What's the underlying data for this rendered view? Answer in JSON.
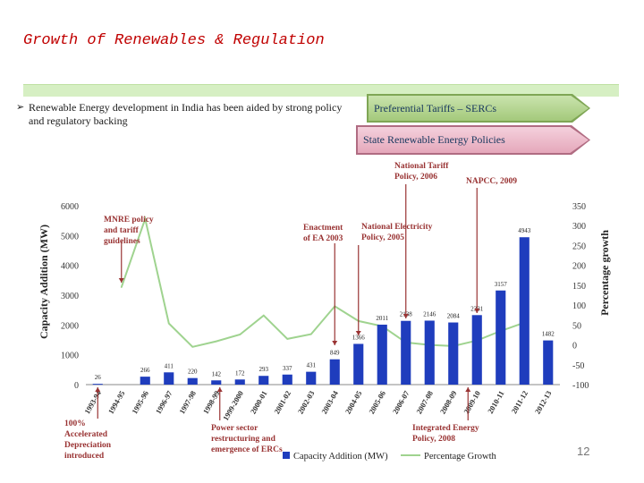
{
  "title": "Growth of Renewables & Regulation",
  "bullet": "Renewable Energy development in India has been aided by strong policy and regulatory backing",
  "arrows": [
    "Preferential Tariffs – SERCs",
    "State Renewable Energy Policies"
  ],
  "page_number": "12",
  "colors": {
    "title": "#c00000",
    "bars": "#1f3dbd",
    "growth_line": "#9fd38f",
    "annotation": "#993333"
  },
  "chart_data": {
    "type": "bar",
    "categories": [
      "1993-94",
      "1994-95",
      "1995-96",
      "1996-97",
      "1997-98",
      "1998-99",
      "1999-2000",
      "2000-01",
      "2001-02",
      "2002-03",
      "2003-04",
      "2004-05",
      "2005-06",
      "2006-07",
      "2007-08",
      "2008-09",
      "2009-10",
      "2010-11",
      "2011-12",
      "2012-13"
    ],
    "series": [
      {
        "name": "Capacity Addition (MW)",
        "axis": "left",
        "values": [
          26,
          null,
          266,
          411,
          220,
          142,
          172,
          293,
          337,
          431,
          849,
          1366,
          2011,
          2138,
          2146,
          2084,
          2331,
          3157,
          4943,
          1482
        ],
        "labels": [
          "26",
          "",
          "266",
          "411",
          "220",
          "142",
          "172",
          "293",
          "337",
          "431",
          "849",
          "1366",
          "2011",
          "2138",
          "2146",
          "2084",
          "2331",
          "3157",
          "4943",
          "1482"
        ]
      },
      {
        "name": "Percentage Growth",
        "axis": "right",
        "values": [
          null,
          145,
          317,
          54,
          -5,
          9,
          26,
          74,
          15,
          27,
          97,
          60,
          47,
          6,
          0,
          -3,
          11,
          35,
          56,
          null
        ]
      }
    ],
    "ylabel": "Capacity Addition (MW)",
    "y2label": "Percentage growth",
    "ylim": [
      0,
      6000
    ],
    "yticks": [
      "0",
      "1000",
      "2000",
      "3000",
      "4000",
      "5000",
      "6000"
    ],
    "y2lim": [
      -100,
      350
    ],
    "y2ticks": [
      "-100",
      "-50",
      "0",
      "50",
      "100",
      "150",
      "200",
      "250",
      "300",
      "350"
    ],
    "legend_position": "bottom",
    "annotations": [
      {
        "text": "100% Accelerated Depreciation introduced",
        "lines": [
          "100%",
          "Accelerated",
          "Depreciation",
          "introduced"
        ],
        "category": "1993-94"
      },
      {
        "text": "MNRE policy and tariff guidelines",
        "lines": [
          "MNRE policy",
          "and tariff",
          "guidelines"
        ],
        "category": "1994-95"
      },
      {
        "text": "Power sector restructuring and emergence of ERCs",
        "lines": [
          "Power sector",
          "restructuring and",
          "emergence of ERCs"
        ],
        "category": "1998-99"
      },
      {
        "text": "Enactment of EA 2003",
        "lines": [
          "Enactment",
          "of EA 2003"
        ],
        "category": "2002-03"
      },
      {
        "text": "National Electricity Policy, 2005",
        "lines": [
          "National Electricity",
          "Policy, 2005"
        ],
        "category": "2004-05"
      },
      {
        "text": "National Tariff Policy, 2006",
        "lines": [
          "National Tariff",
          "Policy, 2006"
        ],
        "category": "2005-06"
      },
      {
        "text": "NAPCC, 2009",
        "lines": [
          "NAPCC, 2009"
        ],
        "category": "2008-09"
      },
      {
        "text": "Integrated Energy Policy, 2008",
        "lines": [
          "Integrated Energy",
          "Policy, 2008"
        ],
        "category": "2007-08"
      }
    ]
  }
}
